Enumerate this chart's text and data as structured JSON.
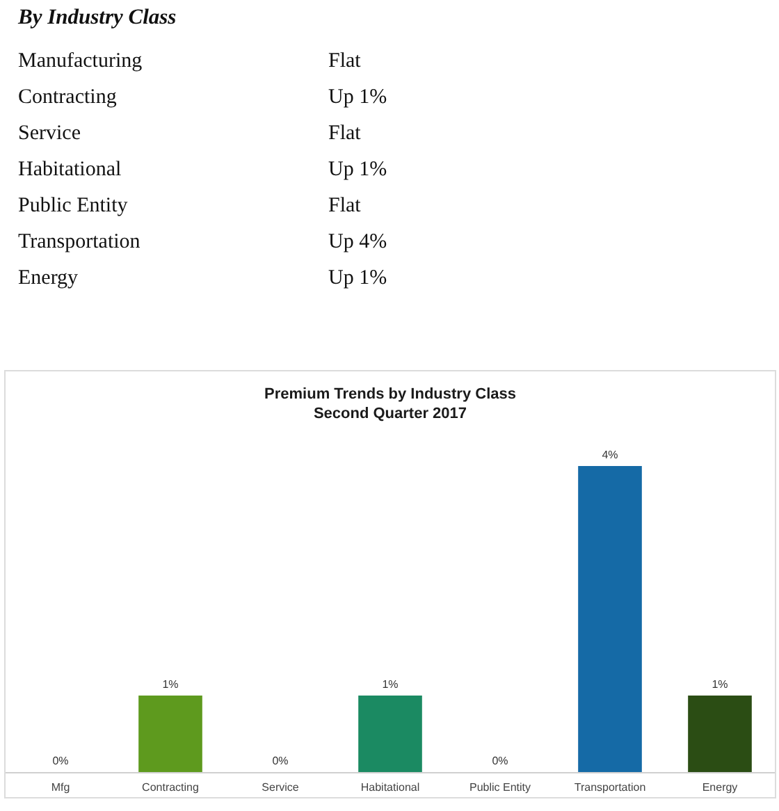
{
  "chart_data": [
    {
      "type": "other",
      "title": "By Industry Class",
      "annotations": [
        "Manufacturing",
        "Flat",
        "Contracting",
        "Up 1%",
        "Service",
        "Flat",
        "Habitational",
        "Up 1%",
        "Public Entity",
        "Flat",
        "Transportation",
        "Up 4%",
        "Energy",
        "Up 1%"
      ]
    },
    {
      "type": "bar",
      "title": "Premium Trends by Industry Class",
      "subtitle": "Second Quarter 2017",
      "categories": [
        "Mfg",
        "Contracting",
        "Service",
        "Habitational",
        "Public Entity",
        "Transportation",
        "Energy"
      ],
      "values": [
        0,
        1,
        0,
        1,
        0,
        4,
        1
      ],
      "colors": [
        null,
        "#5e9a1e",
        null,
        "#1b8a62",
        null,
        "#156aa6",
        "#2b4d14"
      ],
      "value_labels": [
        "0%",
        "1%",
        "0%",
        "1%",
        "0%",
        "4%",
        "1%"
      ]
    }
  ]
}
